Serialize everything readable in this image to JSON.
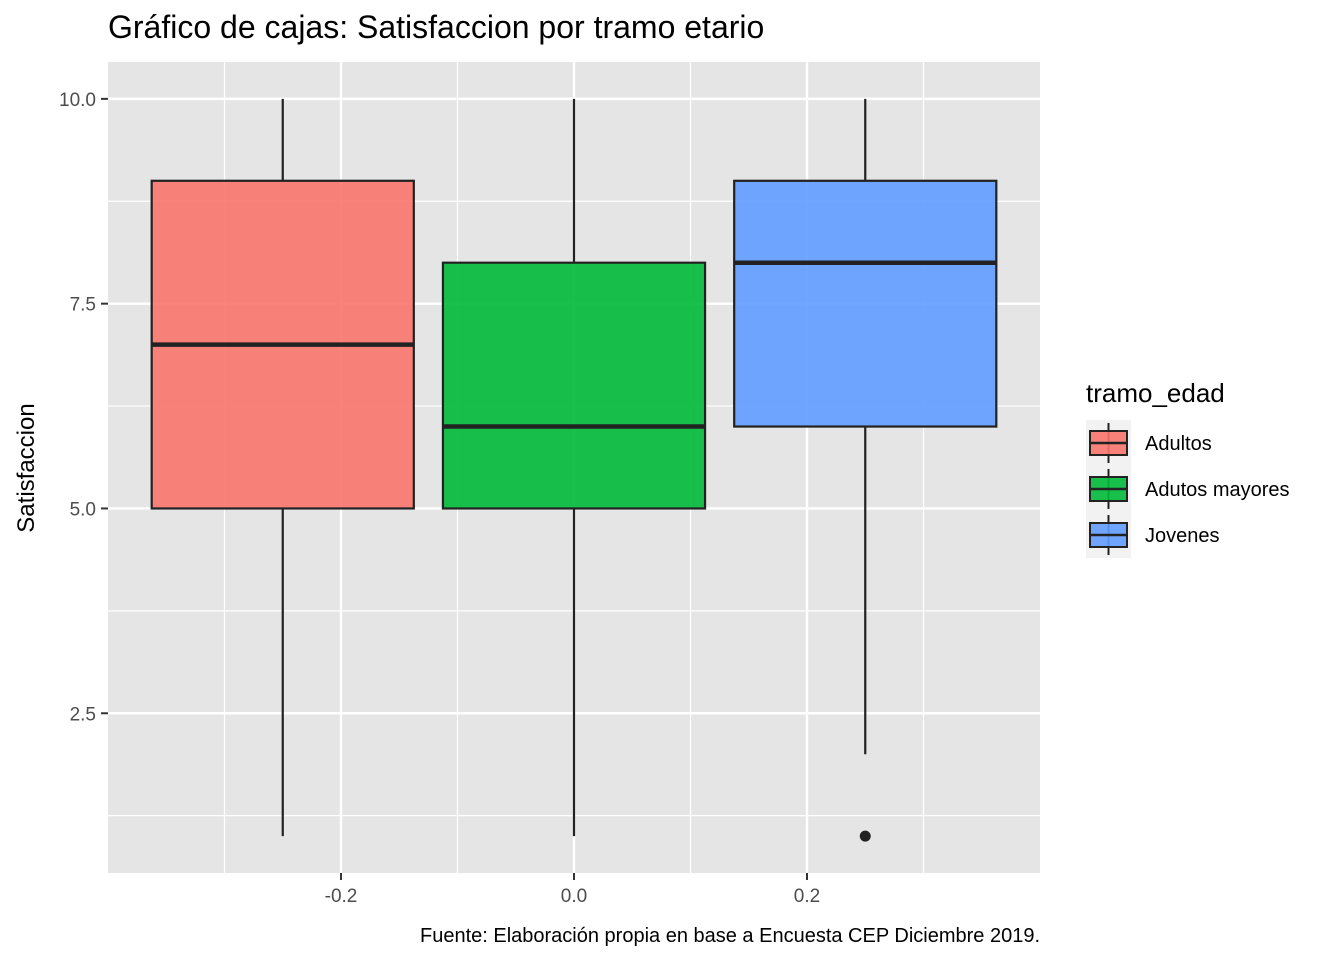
{
  "chart_data": {
    "type": "boxplot",
    "title": "Gráfico de cajas: Satisfaccion por tramo etario",
    "xlabel": "",
    "ylabel": "Satisfaccion",
    "caption": "Fuente: Elaboración propia en base a Encuesta CEP Diciembre 2019.",
    "xlim": [
      -0.4,
      0.4
    ],
    "ylim": [
      0.55,
      10.45
    ],
    "x_ticks": [
      -0.2,
      0.0,
      0.2
    ],
    "x_tick_labels": [
      "-0.2",
      "0.0",
      "0.2"
    ],
    "y_ticks": [
      2.5,
      5.0,
      7.5,
      10.0
    ],
    "y_tick_labels": [
      "2.5",
      "5.0",
      "7.5",
      "10.0"
    ],
    "grid": true,
    "legend": {
      "title": "tramo_edad",
      "position": "right"
    },
    "series": [
      {
        "name": "Adultos",
        "color": "#F8766D",
        "x_center": -0.25,
        "width": 0.225,
        "whisker_low": 1,
        "q1": 5,
        "median": 7,
        "q3": 9,
        "whisker_high": 10,
        "outliers": []
      },
      {
        "name": "Adutos mayores",
        "color": "#00BA38",
        "x_center": 0.0,
        "width": 0.225,
        "whisker_low": 1,
        "q1": 5,
        "median": 6,
        "q3": 8,
        "whisker_high": 10,
        "outliers": []
      },
      {
        "name": "Jovenes",
        "color": "#619CFF",
        "x_center": 0.25,
        "width": 0.225,
        "whisker_low": 2,
        "q1": 6,
        "median": 8,
        "q3": 9,
        "whisker_high": 10,
        "outliers": [
          1
        ]
      }
    ]
  }
}
